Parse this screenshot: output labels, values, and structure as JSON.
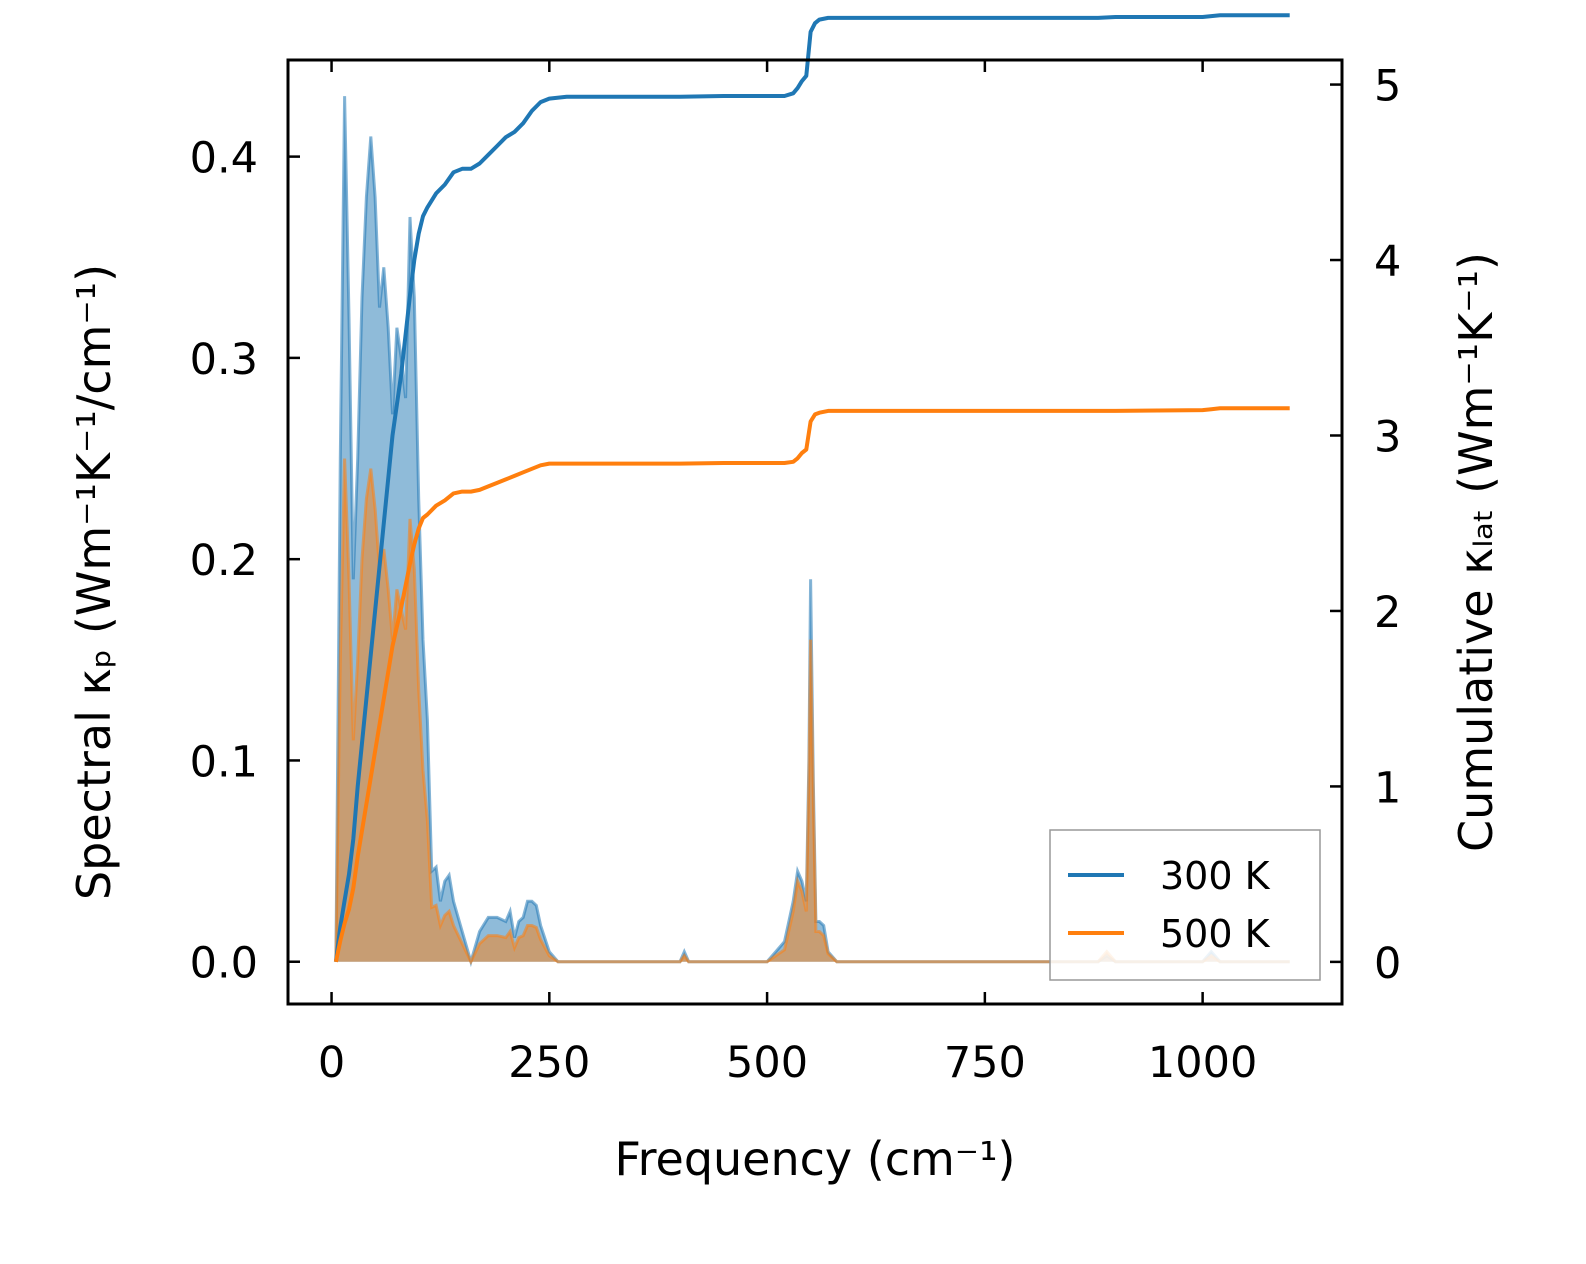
{
  "chart_data": {
    "type": "area",
    "title": "",
    "xlabel": "Frequency (cm⁻¹)",
    "ylabel_left": "Spectral κₚ (Wm⁻¹K⁻¹/cm⁻¹)",
    "ylabel_right": "Cumulative κₗₐₜ (Wm⁻¹K⁻¹)",
    "xlim": [
      -50,
      1160
    ],
    "ylim_left": [
      -0.021,
      0.448
    ],
    "ylim_right": [
      -0.24,
      5.14
    ],
    "x_ticks": [
      0,
      250,
      500,
      750,
      1000
    ],
    "x_tick_labels": [
      "0",
      "250",
      "500",
      "750",
      "1000"
    ],
    "y_left_ticks": [
      0.0,
      0.1,
      0.2,
      0.3,
      0.4
    ],
    "y_left_tick_labels": [
      "0.0",
      "0.1",
      "0.2",
      "0.3",
      "0.4"
    ],
    "y_right_ticks": [
      0,
      1,
      2,
      3,
      4,
      5
    ],
    "y_right_tick_labels": [
      "0",
      "1",
      "2",
      "3",
      "4",
      "5"
    ],
    "grid": false,
    "legend_position": "lower-right",
    "colors": {
      "300 K": "#1f77b4",
      "500 K": "#ff7f0e"
    },
    "series": [
      {
        "name": "300 K",
        "axis": "left",
        "kind": "spectral",
        "x": [
          5,
          10,
          15,
          20,
          25,
          30,
          35,
          40,
          45,
          50,
          55,
          60,
          65,
          70,
          75,
          80,
          85,
          90,
          95,
          100,
          105,
          110,
          115,
          120,
          125,
          130,
          135,
          140,
          150,
          160,
          170,
          180,
          190,
          200,
          205,
          210,
          215,
          220,
          225,
          230,
          235,
          240,
          250,
          260,
          270,
          300,
          400,
          405,
          410,
          500,
          520,
          530,
          535,
          540,
          545,
          548,
          550,
          553,
          556,
          560,
          565,
          570,
          580,
          600,
          880,
          890,
          900,
          1000,
          1010,
          1020,
          1030,
          1100
        ],
        "y": [
          0.0,
          0.25,
          0.43,
          0.32,
          0.19,
          0.25,
          0.33,
          0.38,
          0.41,
          0.38,
          0.325,
          0.345,
          0.315,
          0.272,
          0.315,
          0.3,
          0.28,
          0.37,
          0.33,
          0.23,
          0.16,
          0.12,
          0.045,
          0.047,
          0.03,
          0.04,
          0.043,
          0.03,
          0.015,
          0.0,
          0.015,
          0.022,
          0.022,
          0.02,
          0.025,
          0.012,
          0.02,
          0.022,
          0.03,
          0.03,
          0.028,
          0.018,
          0.005,
          0.0,
          0.0,
          0.0,
          0.0,
          0.005,
          0.0,
          0.0,
          0.01,
          0.03,
          0.045,
          0.04,
          0.03,
          0.1,
          0.19,
          0.09,
          0.02,
          0.02,
          0.018,
          0.005,
          0.0,
          0.0,
          0.0,
          0.003,
          0.0,
          0.0,
          0.005,
          0.0,
          0.0,
          0.0
        ]
      },
      {
        "name": "500 K",
        "axis": "left",
        "kind": "spectral",
        "x": [
          5,
          10,
          15,
          20,
          25,
          30,
          35,
          40,
          45,
          50,
          55,
          60,
          65,
          70,
          75,
          80,
          85,
          90,
          95,
          100,
          105,
          110,
          115,
          120,
          125,
          130,
          135,
          140,
          150,
          160,
          170,
          180,
          190,
          200,
          205,
          210,
          215,
          220,
          225,
          230,
          235,
          240,
          250,
          260,
          270,
          300,
          400,
          405,
          410,
          500,
          520,
          530,
          535,
          540,
          545,
          548,
          550,
          553,
          556,
          560,
          565,
          570,
          580,
          600,
          880,
          890,
          900,
          1000,
          1010,
          1020,
          1030,
          1100
        ],
        "y": [
          0.0,
          0.15,
          0.25,
          0.19,
          0.11,
          0.15,
          0.2,
          0.23,
          0.245,
          0.225,
          0.195,
          0.205,
          0.185,
          0.16,
          0.185,
          0.175,
          0.165,
          0.22,
          0.195,
          0.135,
          0.095,
          0.07,
          0.027,
          0.028,
          0.018,
          0.023,
          0.025,
          0.018,
          0.009,
          0.0,
          0.009,
          0.013,
          0.013,
          0.012,
          0.015,
          0.007,
          0.012,
          0.013,
          0.018,
          0.018,
          0.017,
          0.011,
          0.003,
          0.0,
          0.0,
          0.0,
          0.0,
          0.003,
          0.0,
          0.0,
          0.006,
          0.025,
          0.04,
          0.035,
          0.025,
          0.09,
          0.16,
          0.08,
          0.015,
          0.015,
          0.013,
          0.004,
          0.0,
          0.0,
          0.0,
          0.005,
          0.0,
          0.0,
          0.003,
          0.0,
          0.0,
          0.0
        ]
      },
      {
        "name": "300 K",
        "axis": "right",
        "kind": "cumulative",
        "x": [
          5,
          10,
          15,
          20,
          25,
          30,
          40,
          50,
          60,
          70,
          80,
          90,
          95,
          100,
          105,
          110,
          120,
          130,
          140,
          150,
          160,
          170,
          180,
          190,
          200,
          210,
          220,
          230,
          240,
          250,
          270,
          300,
          400,
          450,
          500,
          520,
          530,
          535,
          540,
          545,
          550,
          555,
          560,
          570,
          600,
          880,
          900,
          1000,
          1010,
          1020,
          1100
        ],
        "y": [
          0.0,
          0.2,
          0.35,
          0.5,
          0.7,
          1.0,
          1.5,
          2.0,
          2.5,
          3.0,
          3.35,
          3.8,
          4.0,
          4.15,
          4.25,
          4.3,
          4.38,
          4.43,
          4.5,
          4.52,
          4.52,
          4.55,
          4.6,
          4.65,
          4.7,
          4.73,
          4.78,
          4.85,
          4.9,
          4.92,
          4.93,
          4.93,
          4.93,
          4.935,
          4.935,
          4.935,
          4.95,
          4.98,
          5.02,
          5.05,
          5.3,
          5.35,
          5.37,
          5.38,
          5.38,
          5.38,
          5.385,
          5.385,
          5.39,
          5.395,
          5.395
        ]
      },
      {
        "name": "500 K",
        "axis": "right",
        "kind": "cumulative",
        "x": [
          5,
          10,
          15,
          20,
          25,
          30,
          40,
          50,
          60,
          70,
          80,
          90,
          95,
          100,
          105,
          110,
          120,
          130,
          140,
          150,
          160,
          170,
          180,
          190,
          200,
          210,
          220,
          230,
          240,
          250,
          270,
          300,
          400,
          450,
          500,
          520,
          530,
          535,
          540,
          545,
          550,
          555,
          560,
          570,
          600,
          880,
          900,
          1000,
          1010,
          1020,
          1100
        ],
        "y": [
          0.0,
          0.12,
          0.22,
          0.3,
          0.42,
          0.6,
          0.9,
          1.2,
          1.5,
          1.8,
          2.02,
          2.27,
          2.38,
          2.47,
          2.53,
          2.55,
          2.6,
          2.63,
          2.67,
          2.68,
          2.68,
          2.69,
          2.71,
          2.73,
          2.75,
          2.77,
          2.79,
          2.81,
          2.83,
          2.84,
          2.84,
          2.84,
          2.84,
          2.843,
          2.843,
          2.843,
          2.85,
          2.87,
          2.9,
          2.92,
          3.08,
          3.12,
          3.13,
          3.14,
          3.14,
          3.14,
          3.14,
          3.145,
          3.15,
          3.155,
          3.155
        ]
      }
    ]
  }
}
